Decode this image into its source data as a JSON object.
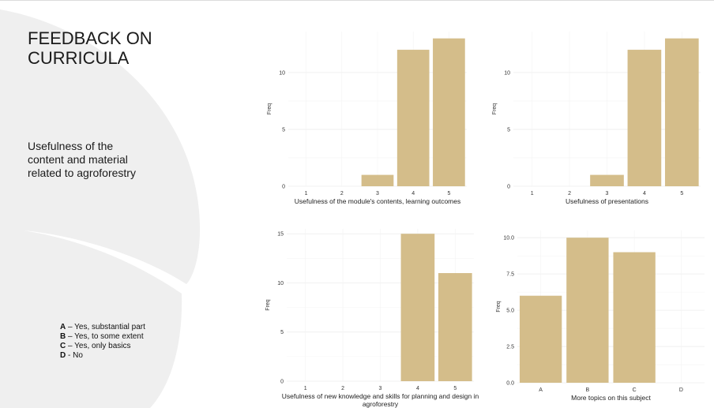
{
  "slide": {
    "title": "FEEDBACK ON\nCURRICULA",
    "subtitle": "Usefulness of the\ncontent and material\nrelated to agroforestry",
    "legend": [
      {
        "key": "A",
        "sep": " – ",
        "text": "Yes, substantial part"
      },
      {
        "key": "B",
        "sep": " – ",
        "text": "Yes, to some extent"
      },
      {
        "key": "C",
        "sep": " – ",
        "text": "Yes, only basics"
      },
      {
        "key": "D",
        "sep": " - ",
        "text": "No"
      }
    ],
    "colors": {
      "bar": "#d4bd8a",
      "grid": "#ececec",
      "decor": "#eeeeee"
    }
  },
  "chart_data": [
    {
      "type": "bar",
      "categories": [
        "1",
        "2",
        "3",
        "4",
        "5"
      ],
      "values": [
        0,
        0,
        1,
        12,
        13
      ],
      "xlabel": [
        "Usefulness of the module's contents, learning outcomes"
      ],
      "ylabel": "Freq",
      "ylim": [
        0,
        13.6
      ],
      "yticks": [
        "0",
        "5",
        "10"
      ],
      "ytick_values": [
        0,
        5,
        10
      ],
      "grid": true
    },
    {
      "type": "bar",
      "categories": [
        "1",
        "2",
        "3",
        "4",
        "5"
      ],
      "values": [
        0,
        0,
        1,
        12,
        13
      ],
      "xlabel": [
        "Usefulness of presentations"
      ],
      "ylabel": "Freq",
      "ylim": [
        0,
        13.6
      ],
      "yticks": [
        "0",
        "5",
        "10"
      ],
      "ytick_values": [
        0,
        5,
        10
      ],
      "grid": true
    },
    {
      "type": "bar",
      "categories": [
        "1",
        "2",
        "3",
        "4",
        "5"
      ],
      "values": [
        0,
        0,
        0,
        15,
        11
      ],
      "xlabel": [
        "Usefulness of new knowledge and skills for planning and design in",
        "agroforestry"
      ],
      "ylabel": "Freq",
      "ylim": [
        0,
        15.5
      ],
      "yticks": [
        "0",
        "5",
        "10",
        "15"
      ],
      "ytick_values": [
        0,
        5,
        10,
        15
      ],
      "grid": true
    },
    {
      "type": "bar",
      "categories": [
        "A",
        "B",
        "C",
        "D"
      ],
      "values": [
        6,
        10,
        9,
        0
      ],
      "xlabel": [
        "More topics on this subject"
      ],
      "ylabel": "Freq",
      "ylim": [
        0,
        10.5
      ],
      "yticks": [
        "0.0",
        "2.5",
        "5.0",
        "7.5",
        "10.0"
      ],
      "ytick_values": [
        0,
        2.5,
        5,
        7.5,
        10
      ],
      "grid": true
    }
  ]
}
